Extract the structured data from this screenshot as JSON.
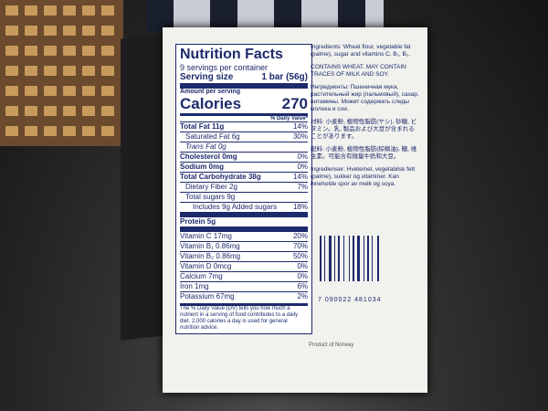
{
  "nutrition": {
    "title": "Nutrition Facts",
    "servings": "9 servings per container",
    "serving_size_label": "Serving size",
    "serving_size_value": "1 bar (56g)",
    "amount_per_serving": "Amount per serving",
    "calories_label": "Calories",
    "calories_value": "270",
    "dv_header": "% Daily Value*",
    "rows": [
      {
        "name": "Total Fat 11g",
        "dv": "14%",
        "style": "bold"
      },
      {
        "name": "Saturated Fat 6g",
        "dv": "30%",
        "style": "indent"
      },
      {
        "name": "Trans Fat 0g",
        "dv": "",
        "style": "indent-italic"
      },
      {
        "name": "Cholesterol 0mg",
        "dv": "0%",
        "style": "bold"
      },
      {
        "name": "Sodium 0mg",
        "dv": "0%",
        "style": "bold"
      },
      {
        "name": "Total Carbohydrate 38g",
        "dv": "14%",
        "style": "bold"
      },
      {
        "name": "Dietary Fiber 2g",
        "dv": "7%",
        "style": "indent"
      },
      {
        "name": "Total sugars 9g",
        "dv": "",
        "style": "indent"
      },
      {
        "name": "Includes 9g Added sugars",
        "dv": "18%",
        "style": "indent2"
      },
      {
        "name": "Protein 5g",
        "dv": "",
        "style": "thick"
      },
      {
        "name": "Vitamin C 17mg",
        "dv": "20%",
        "style": "plain"
      },
      {
        "name": "Vitamin B₁ 0.86mg",
        "dv": "70%",
        "style": "plain"
      },
      {
        "name": "Vitamin B₂ 0.86mg",
        "dv": "50%",
        "style": "plain"
      },
      {
        "name": "Vitamin D 0mcg",
        "dv": "0%",
        "style": "plain"
      },
      {
        "name": "Calcium 7mg",
        "dv": "0%",
        "style": "plain"
      },
      {
        "name": "Iron 1mg",
        "dv": "6%",
        "style": "plain"
      },
      {
        "name": "Potassium 67mg",
        "dv": "2%",
        "style": "plain"
      }
    ],
    "footnote": "The % Daily Value (DV) tells you how much a nutrient in a serving of food contributes to a daily diet. 2,000 calories a day is used for general nutrition advice."
  },
  "ingredients": {
    "en": "Ingredients: Wheat flour, vegetable fat (palme), sugar and vitamins C, B₁, B₂.",
    "en_allergy": "CONTAINS WHEAT. MAY CONTAIN TRACES OF MILK AND SOY.",
    "ru": "Ингредиенты: Пшеничная мука, растительный жир (пальмовый), сахар, витамины. Может содержать следы молока и сои.",
    "ja": "材料: 小麦粉, 植物性脂肪(ヤシ), 砂糖, ビタミン。乳, 製品および大豆が含まれることがあります。",
    "zh": "配料: 小麦粉, 植物性脂肪(棕榈油), 糖, 维生素。可能含有微量牛奶和大豆。",
    "no": "Ingredienser: Hvetemel, vegetabilsk fett (palme), sukker og vitaminer. Kan inneholde spor av melk og soya."
  },
  "barcode": "7 090022 481034",
  "origin": "Product of Norway"
}
